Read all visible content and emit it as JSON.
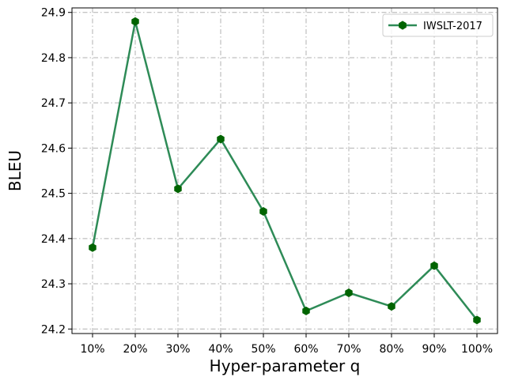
{
  "chart_data": {
    "type": "line",
    "categories": [
      "10%",
      "20%",
      "30%",
      "40%",
      "50%",
      "60%",
      "70%",
      "80%",
      "90%",
      "100%"
    ],
    "series": [
      {
        "name": "IWSLT-2017",
        "values": [
          24.38,
          24.88,
          24.51,
          24.62,
          24.46,
          24.24,
          24.28,
          24.25,
          24.34,
          24.22
        ],
        "line_color": "#2e8b57",
        "marker_color": "#006400",
        "marker": "hexagon"
      }
    ],
    "xlabel": "Hyper-parameter q",
    "ylabel": "BLEU",
    "ylim": [
      24.19,
      24.91
    ],
    "yticks": [
      "24.2",
      "24.3",
      "24.4",
      "24.5",
      "24.6",
      "24.7",
      "24.8",
      "24.9"
    ],
    "grid": true,
    "grid_style": "dash-dot",
    "legend_position": "top-right"
  }
}
